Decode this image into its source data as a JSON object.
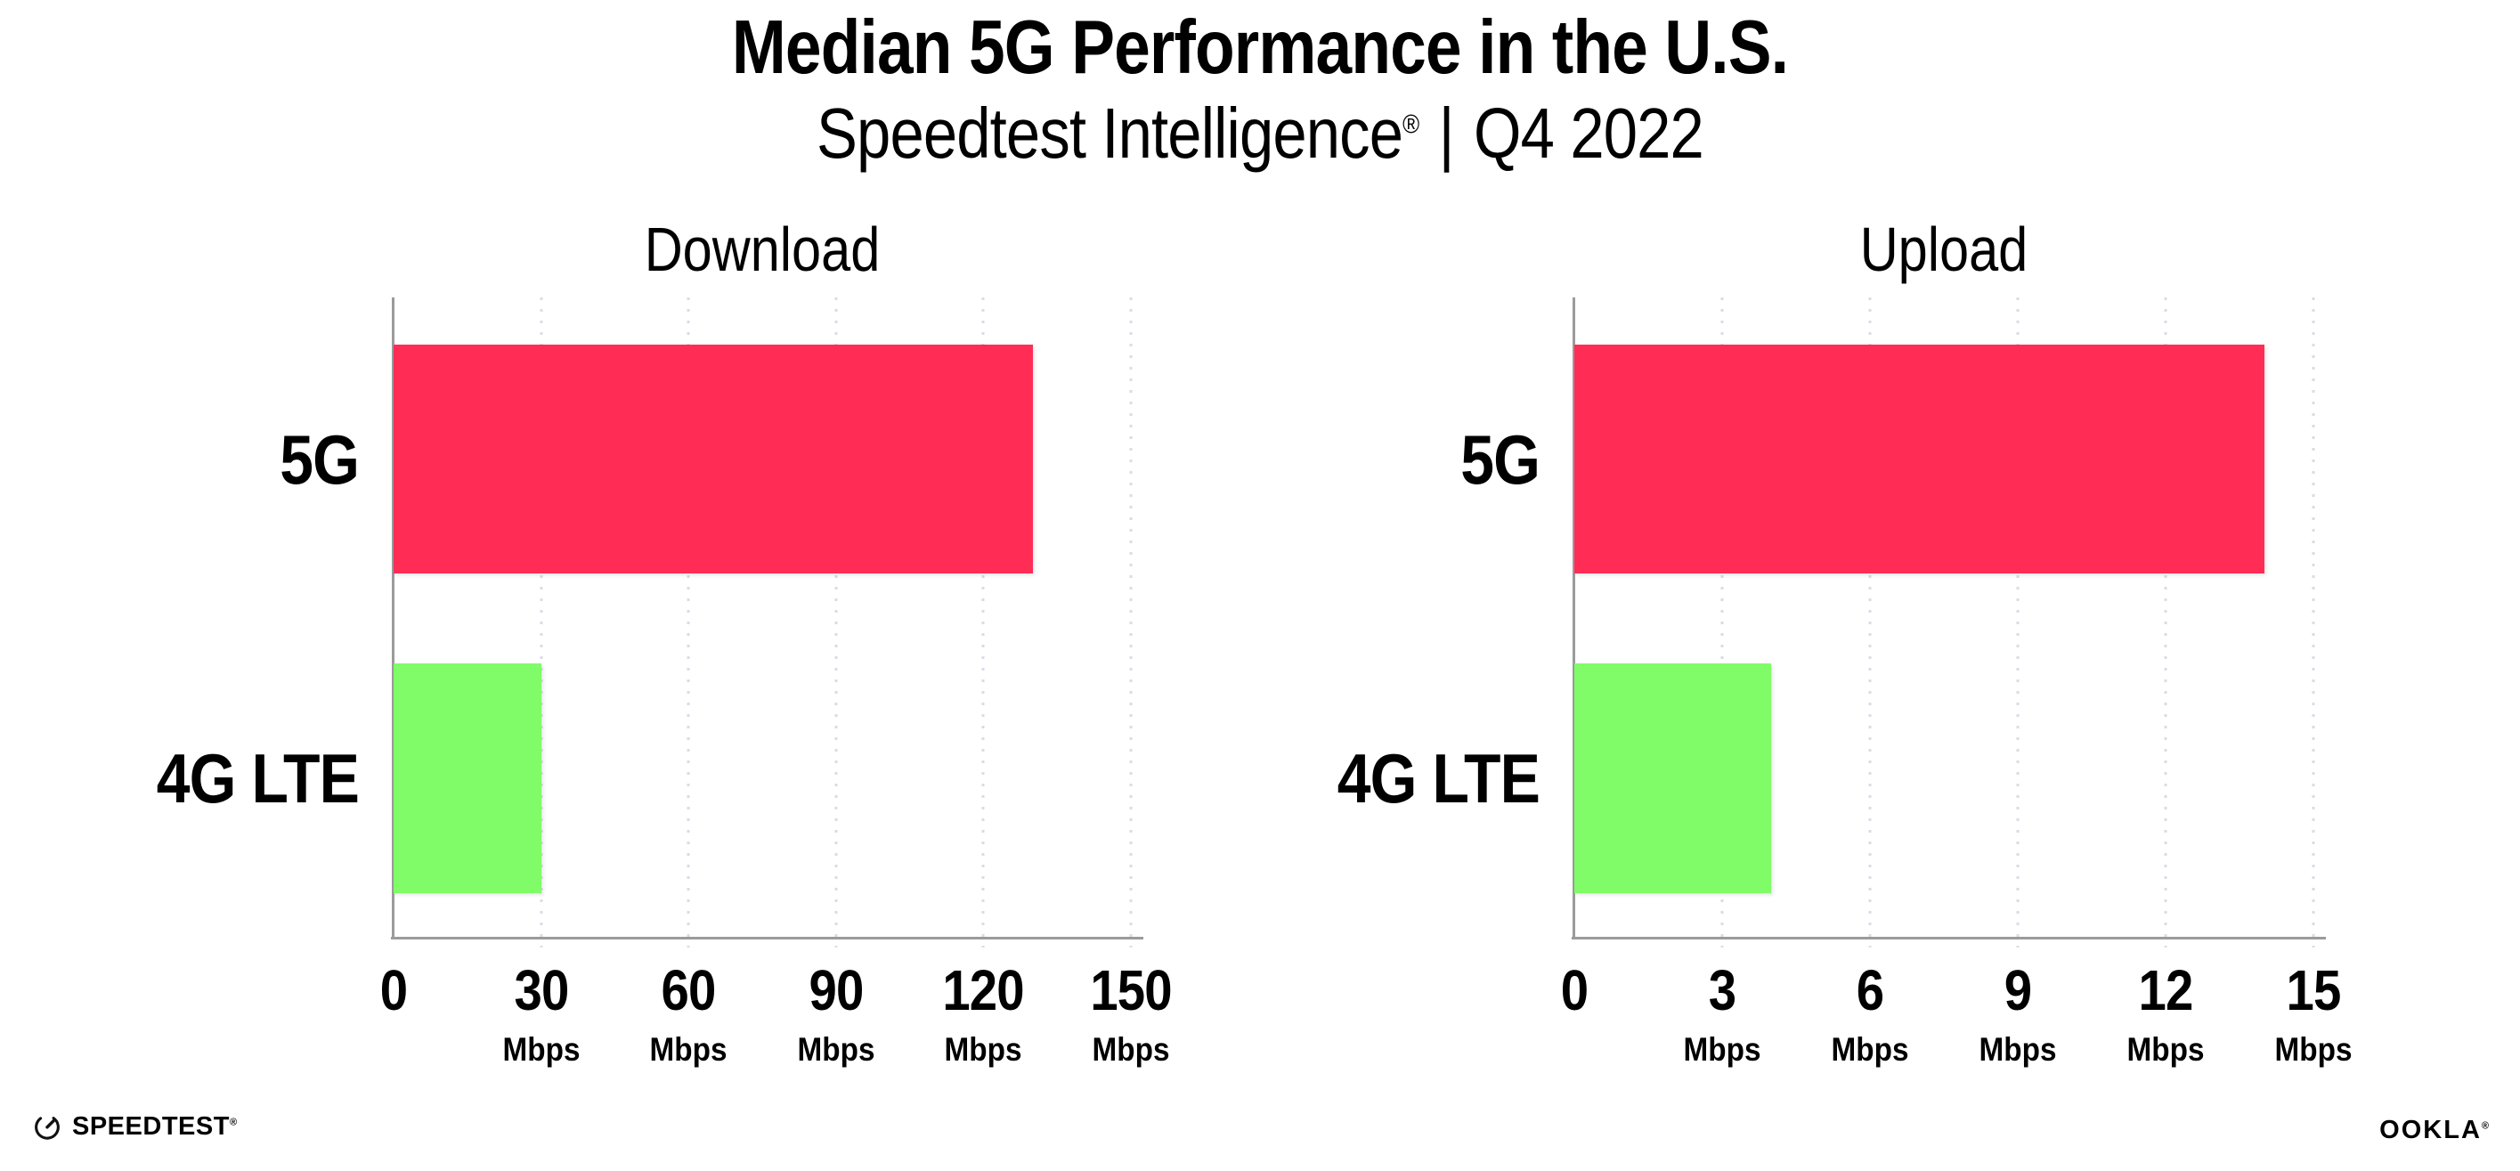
{
  "page": {
    "background": "#FFFFFF"
  },
  "header": {
    "title": "Median 5G Performance in the U.S.",
    "subtitle": {
      "brand": "Speedtest Intelligence",
      "reg": "®",
      "divider": "|",
      "period": "Q4 2022"
    }
  },
  "colors": {
    "bar_5g": "#FF2D55",
    "bar_4g_lte": "#7FFC67",
    "axis": "#9B9B9B",
    "gridline": "#DBDBE6",
    "text": "#000000"
  },
  "chart_data": [
    {
      "type": "bar",
      "orientation": "horizontal",
      "title": "Download",
      "categories": [
        "5G",
        "4G LTE"
      ],
      "values": [
        130,
        30
      ],
      "unit": "Mbps",
      "xlim": [
        0,
        150
      ],
      "xticks": [
        0,
        30,
        60,
        90,
        120,
        150
      ],
      "bar_colors": [
        "#FF2D55",
        "#7FFC67"
      ],
      "grid": "dotted-vertical",
      "legend": "none"
    },
    {
      "type": "bar",
      "orientation": "horizontal",
      "title": "Upload",
      "categories": [
        "5G",
        "4G LTE"
      ],
      "values": [
        14,
        4
      ],
      "unit": "Mbps",
      "xlim": [
        0,
        15
      ],
      "xticks": [
        0,
        3,
        6,
        9,
        12,
        15
      ],
      "bar_colors": [
        "#FF2D55",
        "#7FFC67"
      ],
      "grid": "dotted-vertical",
      "legend": "none"
    }
  ],
  "footer": {
    "speedtest": {
      "icon": "speedtest-gauge-icon",
      "label": "SPEEDTEST",
      "mark": "®"
    },
    "ookla": {
      "label": "OOKLA",
      "mark": "®"
    }
  }
}
